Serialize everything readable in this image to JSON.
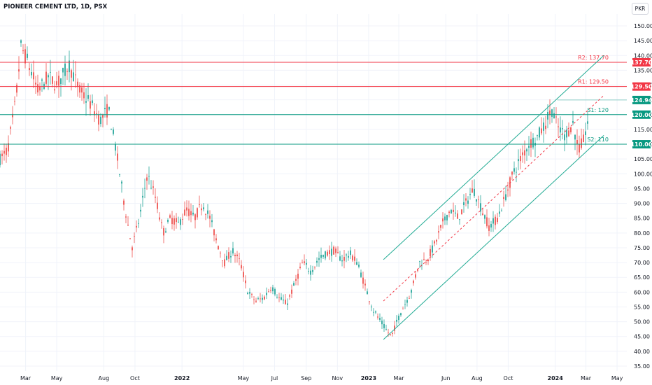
{
  "header": {
    "title": "PIONEER CEMENT LTD, 1D, PSX",
    "currency": "PKR"
  },
  "colors": {
    "up": "#26a69a",
    "down": "#ef5350",
    "resistance": "#f23645",
    "support": "#089981",
    "channel": "#22ab94",
    "midline": "#f23645",
    "grid": "#f0f3fa"
  },
  "chart_data": {
    "type": "candlestick",
    "title": "PIONEER CEMENT LTD, 1D, PSX",
    "ylim": [
      35,
      150
    ],
    "xlim": [
      "2021-01-10",
      "2024-05-20"
    ],
    "y_ticks": [
      "35.00",
      "40.00",
      "45.00",
      "50.00",
      "55.00",
      "60.00",
      "65.00",
      "70.00",
      "75.00",
      "80.00",
      "85.00",
      "90.00",
      "95.00",
      "100.00",
      "105.00",
      "110.00",
      "115.00",
      "120.00",
      "125.00",
      "130.00",
      "135.00",
      "140.00",
      "145.00",
      "150.00"
    ],
    "x_ticks": [
      {
        "label": "Mar",
        "date": "2021-03-01",
        "bold": false
      },
      {
        "label": "May",
        "date": "2021-05-01",
        "bold": false
      },
      {
        "label": "Aug",
        "date": "2021-08-01",
        "bold": false
      },
      {
        "label": "Oct",
        "date": "2021-10-01",
        "bold": false
      },
      {
        "label": "2022",
        "date": "2022-01-01",
        "bold": true
      },
      {
        "label": "May",
        "date": "2022-05-01",
        "bold": false
      },
      {
        "label": "Jul",
        "date": "2022-07-01",
        "bold": false
      },
      {
        "label": "Sep",
        "date": "2022-09-01",
        "bold": false
      },
      {
        "label": "Nov",
        "date": "2022-11-01",
        "bold": false
      },
      {
        "label": "2023",
        "date": "2023-01-01",
        "bold": true
      },
      {
        "label": "Mar",
        "date": "2023-03-01",
        "bold": false
      },
      {
        "label": "Jun",
        "date": "2023-06-01",
        "bold": false
      },
      {
        "label": "Aug",
        "date": "2023-08-01",
        "bold": false
      },
      {
        "label": "Oct",
        "date": "2023-10-01",
        "bold": false
      },
      {
        "label": "2024",
        "date": "2024-01-01",
        "bold": true
      },
      {
        "label": "Mar",
        "date": "2024-03-01",
        "bold": false
      },
      {
        "label": "May",
        "date": "2024-05-01",
        "bold": false
      }
    ],
    "price_path": [
      [
        "2021-01-10",
        105
      ],
      [
        "2021-01-25",
        108
      ],
      [
        "2021-02-10",
        125
      ],
      [
        "2021-02-20",
        143
      ],
      [
        "2021-03-05",
        138
      ],
      [
        "2021-03-25",
        128
      ],
      [
        "2021-04-15",
        133
      ],
      [
        "2021-05-01",
        130
      ],
      [
        "2021-05-25",
        137
      ],
      [
        "2021-06-15",
        128
      ],
      [
        "2021-07-05",
        124
      ],
      [
        "2021-07-25",
        118
      ],
      [
        "2021-08-10",
        122
      ],
      [
        "2021-08-25",
        108
      ],
      [
        "2021-09-10",
        90
      ],
      [
        "2021-09-25",
        75
      ],
      [
        "2021-10-10",
        85
      ],
      [
        "2021-10-25",
        100
      ],
      [
        "2021-11-10",
        92
      ],
      [
        "2021-11-25",
        80
      ],
      [
        "2021-12-10",
        85
      ],
      [
        "2021-12-25",
        83
      ],
      [
        "2022-01-10",
        88
      ],
      [
        "2022-01-25",
        85
      ],
      [
        "2022-02-10",
        90
      ],
      [
        "2022-02-25",
        85
      ],
      [
        "2022-03-10",
        77
      ],
      [
        "2022-03-25",
        70
      ],
      [
        "2022-04-10",
        74
      ],
      [
        "2022-04-25",
        70
      ],
      [
        "2022-05-10",
        60
      ],
      [
        "2022-05-25",
        57
      ],
      [
        "2022-06-10",
        58
      ],
      [
        "2022-06-25",
        62
      ],
      [
        "2022-07-10",
        58
      ],
      [
        "2022-07-25",
        56
      ],
      [
        "2022-08-10",
        63
      ],
      [
        "2022-08-25",
        70
      ],
      [
        "2022-09-10",
        67
      ],
      [
        "2022-09-25",
        71
      ],
      [
        "2022-10-10",
        73
      ],
      [
        "2022-10-25",
        74
      ],
      [
        "2022-11-10",
        71
      ],
      [
        "2022-11-25",
        73
      ],
      [
        "2022-12-10",
        70
      ],
      [
        "2022-12-25",
        62
      ],
      [
        "2023-01-10",
        54
      ],
      [
        "2023-01-25",
        50
      ],
      [
        "2023-02-05",
        47
      ],
      [
        "2023-02-15",
        45
      ],
      [
        "2023-02-25",
        50
      ],
      [
        "2023-03-10",
        55
      ],
      [
        "2023-03-25",
        60
      ],
      [
        "2023-04-10",
        70
      ],
      [
        "2023-04-25",
        71
      ],
      [
        "2023-05-10",
        76
      ],
      [
        "2023-05-25",
        83
      ],
      [
        "2023-06-10",
        88
      ],
      [
        "2023-06-25",
        85
      ],
      [
        "2023-07-10",
        90
      ],
      [
        "2023-07-25",
        95
      ],
      [
        "2023-08-10",
        88
      ],
      [
        "2023-08-25",
        82
      ],
      [
        "2023-09-10",
        85
      ],
      [
        "2023-09-25",
        92
      ],
      [
        "2023-10-10",
        100
      ],
      [
        "2023-10-25",
        105
      ],
      [
        "2023-11-10",
        110
      ],
      [
        "2023-11-25",
        112
      ],
      [
        "2023-12-10",
        116
      ],
      [
        "2023-12-25",
        122
      ],
      [
        "2024-01-05",
        116
      ],
      [
        "2024-01-20",
        113
      ],
      [
        "2024-02-05",
        117
      ],
      [
        "2024-02-15",
        108
      ],
      [
        "2024-02-25",
        111
      ],
      [
        "2024-03-05",
        118
      ]
    ],
    "horizontal_levels": [
      {
        "name": "R2",
        "text": "R2: 137.70",
        "badge": "137.70",
        "value": 137.7,
        "kind": "resistance"
      },
      {
        "name": "R1",
        "text": "R1: 129.50",
        "badge": "129.50",
        "value": 129.5,
        "kind": "resistance"
      },
      {
        "name": "S1",
        "text": "S1: 120",
        "badge": "120.00",
        "value": 120,
        "kind": "support"
      },
      {
        "name": "S2",
        "text": "S2: 110",
        "badge": "110.00",
        "value": 110,
        "kind": "support"
      }
    ],
    "last_price": {
      "badge": "124.94",
      "value": 124.94,
      "line_start": "2024-01-05"
    },
    "channel": {
      "lower": [
        [
          "2023-01-30",
          44
        ],
        [
          "2024-04-05",
          113
        ]
      ],
      "upper": [
        [
          "2023-01-30",
          71
        ],
        [
          "2024-04-05",
          140
        ]
      ],
      "middle": [
        [
          "2023-01-30",
          57
        ],
        [
          "2024-04-05",
          126.5
        ]
      ]
    }
  }
}
